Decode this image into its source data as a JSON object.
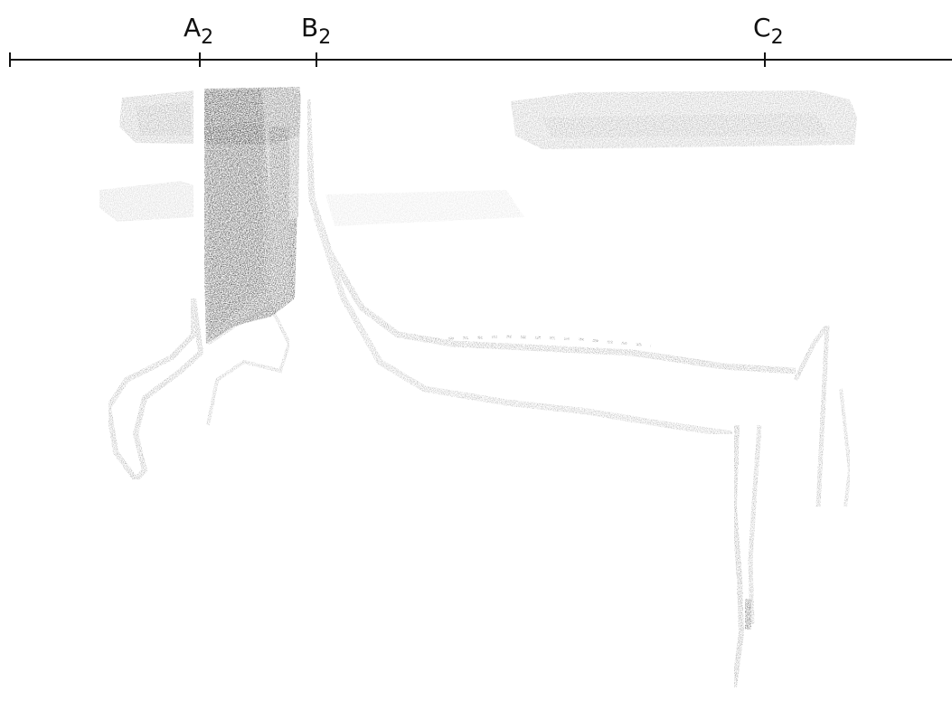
{
  "markers": [
    {
      "id": "a2",
      "letter": "A",
      "sub": "2"
    },
    {
      "id": "b2",
      "letter": "B",
      "sub": "2"
    },
    {
      "id": "c2",
      "letter": "C",
      "sub": "2"
    }
  ],
  "colors": {
    "ink": "#111111",
    "dark": "#1a1a1a",
    "mid": "#6e6e6e",
    "light": "#b4b4b4",
    "faint": "#d8d8d8",
    "paper": "#ffffff"
  }
}
